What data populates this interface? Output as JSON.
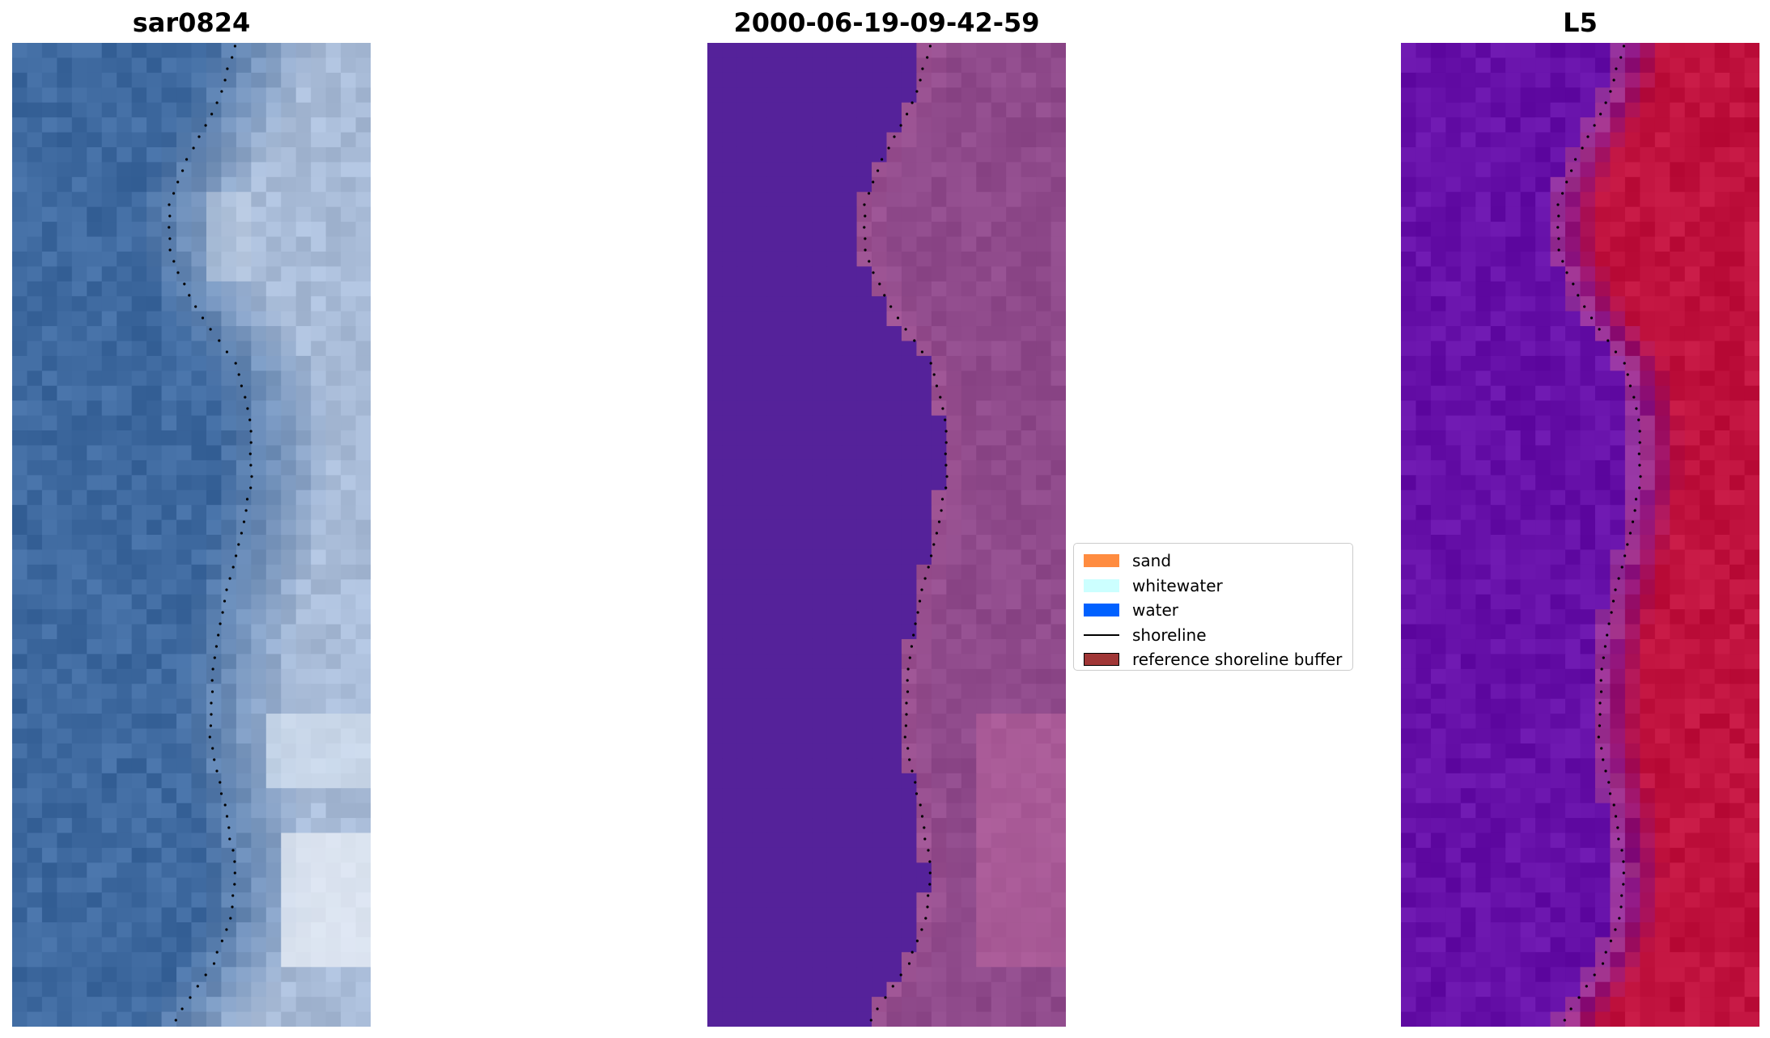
{
  "panels": [
    {
      "title": "sar0824",
      "style": "rgb"
    },
    {
      "title": "2000-06-19-09-42-59",
      "style": "classified"
    },
    {
      "title": "L5",
      "style": "index"
    }
  ],
  "legend": {
    "items": [
      {
        "label": "sand",
        "color": "#ff8c40",
        "kind": "patch"
      },
      {
        "label": "whitewater",
        "color": "#ccffff",
        "kind": "patch"
      },
      {
        "label": "water",
        "color": "#0061ff",
        "kind": "patch"
      },
      {
        "label": "shoreline",
        "color": "#000000",
        "kind": "line"
      },
      {
        "label": "reference shoreline buffer",
        "color": "#a03636",
        "kind": "patch-edged"
      }
    ]
  },
  "colors": {
    "rgb_water": "#3f6aa0",
    "rgb_land": "#a9bcd8",
    "classified_water": "#55229a",
    "classified_land": "#8f4a8b",
    "index_water": "#6610a8",
    "index_land": "#c0123e",
    "shoreline": "#000000"
  }
}
